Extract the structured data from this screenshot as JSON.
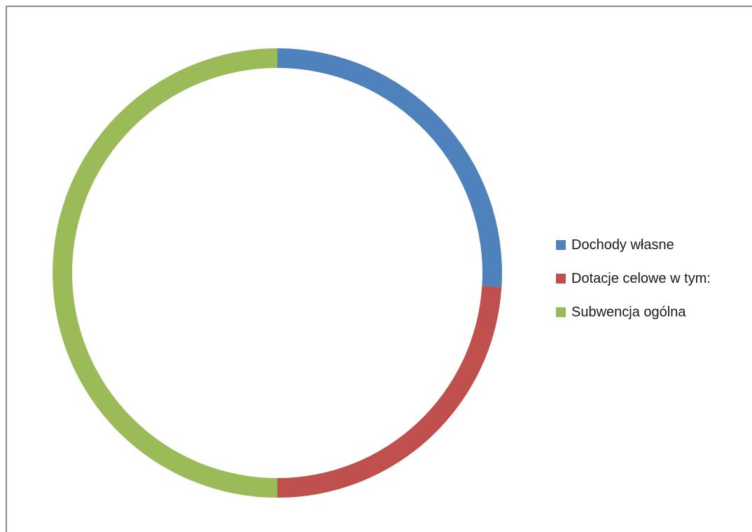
{
  "chart_data": {
    "type": "pie",
    "donut": true,
    "title": "",
    "start_angle_deg": 0,
    "direction": "clockwise",
    "legend_position": "right",
    "series": [
      {
        "label": "Dochody własne",
        "value": 26.0,
        "color": "#4F81BD"
      },
      {
        "label": "Dotacje celowe w tym:",
        "value": 24.0,
        "color": "#C0504D"
      },
      {
        "label": "Subwencja ogólna",
        "value": 50.0,
        "color": "#9BBB59"
      }
    ]
  }
}
